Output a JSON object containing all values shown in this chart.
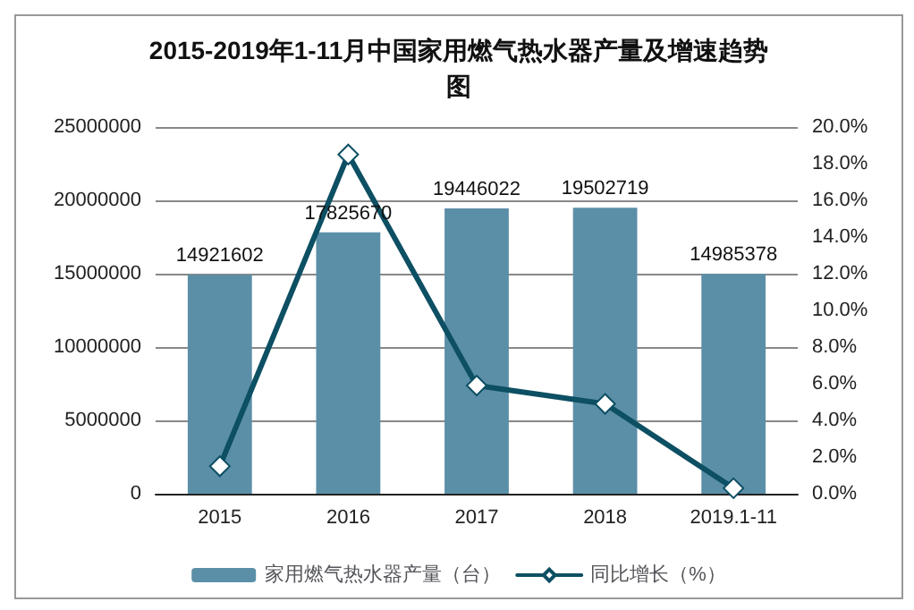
{
  "chart_data": {
    "type": "bar",
    "title": "2015-2019年1-11月中国家用燃气热水器产量及增速趋势图",
    "categories": [
      "2015",
      "2016",
      "2017",
      "2018",
      "2019.1-11"
    ],
    "series": [
      {
        "name": "家用燃气热水器产量（台）",
        "color": "#5b8fa8",
        "values": [
          14921602,
          17825670,
          19446022,
          19502719,
          14985378
        ],
        "value_labels": [
          "14921602",
          "17825670",
          "19446022",
          "19502719",
          "14985378"
        ]
      },
      {
        "name": "同比增长（%）",
        "type": "line",
        "axis": "y2",
        "color": "#0d4f63",
        "marker": "diamond",
        "values": [
          1.5,
          18.5,
          5.9,
          4.9,
          0.3
        ]
      }
    ],
    "ylim": [
      0,
      25000000
    ],
    "yticks": [
      0,
      5000000,
      10000000,
      15000000,
      20000000,
      25000000
    ],
    "y2lim": [
      0,
      20
    ],
    "y2ticks": [
      {
        "value": 0,
        "label": "0.0%"
      },
      {
        "value": 2,
        "label": "2.0%"
      },
      {
        "value": 4,
        "label": "4.0%"
      },
      {
        "value": 6,
        "label": "6.0%"
      },
      {
        "value": 8,
        "label": "8.0%"
      },
      {
        "value": 10,
        "label": "10.0%"
      },
      {
        "value": 12,
        "label": "12.0%"
      },
      {
        "value": 14,
        "label": "14.0%"
      },
      {
        "value": 16,
        "label": "16.0%"
      },
      {
        "value": 18,
        "label": "18.0%"
      },
      {
        "value": 20,
        "label": "20.0%"
      }
    ],
    "grid": "y",
    "legend": "bottom"
  }
}
